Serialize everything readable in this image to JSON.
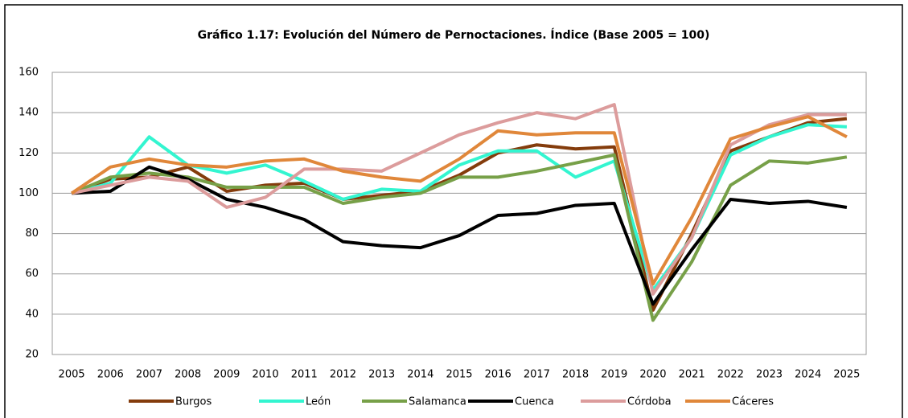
{
  "chart_data": {
    "type": "line",
    "title": "Gráfico 1.17: Evolución del Número de Pernoctaciones. Índice (Base 2005 = 100)",
    "categories": [
      "2005",
      "2006",
      "2007",
      "2008",
      "2009",
      "2010",
      "2011",
      "2012",
      "2013",
      "2014",
      "2015",
      "2016",
      "2017",
      "2018",
      "2019",
      "2020",
      "2021",
      "2022",
      "2023",
      "2024",
      "2025"
    ],
    "series": [
      {
        "name": "Burgos",
        "color": "#843c0c",
        "values": [
          100,
          107,
          108,
          113,
          101,
          104,
          105,
          97,
          99,
          101,
          109,
          120,
          124,
          122,
          123,
          42,
          80,
          121,
          128,
          135,
          137
        ]
      },
      {
        "name": "León",
        "color": "#33f5d0",
        "values": [
          100,
          105,
          128,
          114,
          110,
          114,
          106,
          97,
          102,
          101,
          114,
          121,
          121,
          108,
          116,
          52,
          78,
          119,
          128,
          134,
          133
        ]
      },
      {
        "name": "Salamanca",
        "color": "#77a048",
        "values": [
          100,
          108,
          110,
          108,
          103,
          103,
          103,
          95,
          98,
          100,
          108,
          108,
          111,
          115,
          119,
          37,
          66,
          104,
          116,
          115,
          118
        ]
      },
      {
        "name": "Cuenca",
        "color": "#000000",
        "values": [
          100,
          101,
          113,
          107,
          97,
          93,
          87,
          76,
          74,
          73,
          79,
          89,
          90,
          94,
          95,
          45,
          72,
          97,
          95,
          96,
          93
        ]
      },
      {
        "name": "Córdoba",
        "color": "#dc9c9c",
        "values": [
          100,
          104,
          108,
          106,
          93,
          98,
          112,
          112,
          111,
          120,
          129,
          135,
          140,
          137,
          144,
          50,
          78,
          124,
          134,
          139,
          139
        ]
      },
      {
        "name": "Cáceres",
        "color": "#e0873a",
        "values": [
          100,
          113,
          117,
          114,
          113,
          116,
          117,
          111,
          108,
          106,
          117,
          131,
          129,
          130,
          130,
          55,
          88,
          127,
          133,
          138,
          128
        ]
      }
    ],
    "ylim": [
      20,
      160
    ],
    "yticks": [
      20,
      40,
      60,
      80,
      100,
      120,
      140,
      160
    ],
    "grid": true,
    "legend": "bottom"
  }
}
